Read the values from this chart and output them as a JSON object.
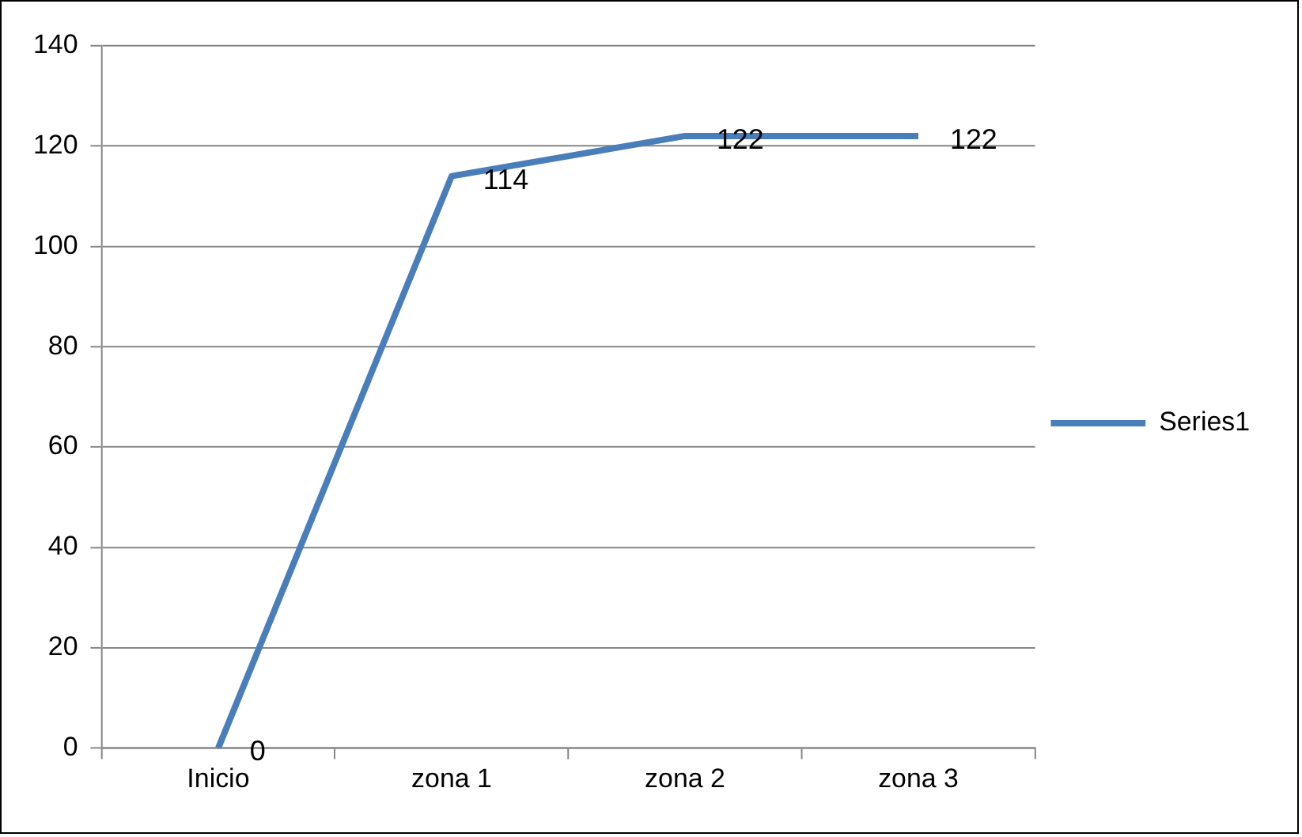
{
  "chart_data": {
    "type": "line",
    "categories": [
      "Inicio",
      "zona 1",
      "zona 2",
      "zona 3"
    ],
    "series": [
      {
        "name": "Series1",
        "color": "#4a7ebb",
        "values": [
          0,
          114,
          122,
          122
        ]
      }
    ],
    "ylim": [
      0,
      140
    ],
    "yticks": [
      0,
      20,
      40,
      60,
      80,
      100,
      120,
      140
    ],
    "grid": "y",
    "legend": "right",
    "marker": "none",
    "line_style": "solid",
    "data_labels": true
  }
}
